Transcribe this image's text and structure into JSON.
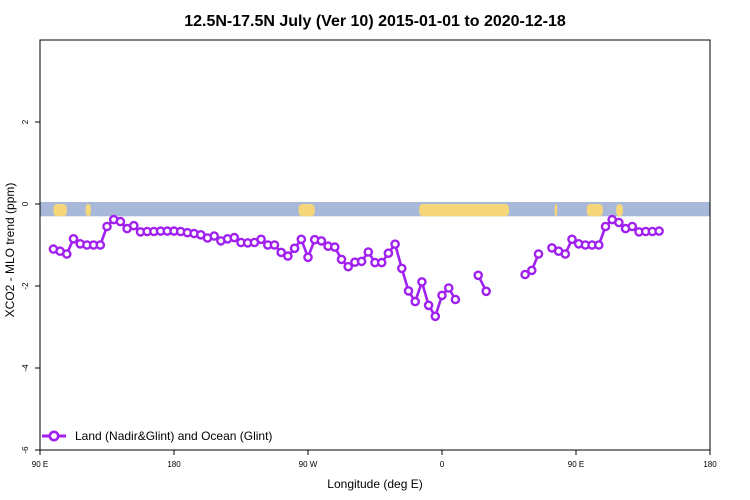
{
  "chart_data": {
    "type": "line",
    "title": "12.5N-17.5N July (Ver 10)   2015-01-01 to 2020-12-18",
    "xlabel": "Longitude (deg E)",
    "ylabel": "XCO2 - MLO trend (ppm)",
    "xlim": [
      0,
      500
    ],
    "ylim": [
      -6,
      4
    ],
    "x_ticks": [
      {
        "value": 0,
        "label": "90 E"
      },
      {
        "value": 100,
        "label": "180"
      },
      {
        "value": 200,
        "label": "90 W"
      },
      {
        "value": 300,
        "label": "0"
      },
      {
        "value": 400,
        "label": "90 E"
      },
      {
        "value": 500,
        "label": "180"
      }
    ],
    "y_ticks": [
      -6,
      -4,
      -2,
      0,
      2
    ],
    "legend": {
      "position": "bottom-left",
      "label": "Land (Nadir&Glint) and Ocean (Glint)"
    },
    "series": [
      {
        "name": "Land (Nadir&Glint) and Ocean (Glint)",
        "color": "#a020f0",
        "segments": [
          [
            [
              10,
              -1.1
            ],
            [
              15,
              -1.15
            ],
            [
              20,
              -1.22
            ],
            [
              25,
              -0.85
            ],
            [
              30,
              -0.97
            ],
            [
              35,
              -1.0
            ],
            [
              40,
              -1.0
            ],
            [
              45,
              -1.0
            ],
            [
              50,
              -0.55
            ],
            [
              55,
              -0.38
            ],
            [
              60,
              -0.43
            ],
            [
              65,
              -0.6
            ],
            [
              70,
              -0.53
            ],
            [
              75,
              -0.68
            ],
            [
              80,
              -0.67
            ],
            [
              85,
              -0.67
            ],
            [
              90,
              -0.66
            ],
            [
              95,
              -0.66
            ],
            [
              100,
              -0.66
            ],
            [
              105,
              -0.67
            ],
            [
              110,
              -0.7
            ],
            [
              115,
              -0.72
            ],
            [
              120,
              -0.75
            ],
            [
              125,
              -0.83
            ],
            [
              130,
              -0.78
            ],
            [
              135,
              -0.9
            ],
            [
              140,
              -0.85
            ],
            [
              145,
              -0.82
            ],
            [
              150,
              -0.94
            ],
            [
              155,
              -0.95
            ],
            [
              160,
              -0.94
            ],
            [
              165,
              -0.86
            ],
            [
              170,
              -1.0
            ],
            [
              175,
              -1.0
            ],
            [
              180,
              -1.18
            ],
            [
              185,
              -1.27
            ],
            [
              190,
              -1.08
            ],
            [
              195,
              -0.86
            ],
            [
              200,
              -1.3
            ],
            [
              205,
              -0.87
            ],
            [
              210,
              -0.9
            ],
            [
              215,
              -1.03
            ],
            [
              220,
              -1.05
            ],
            [
              225,
              -1.35
            ],
            [
              230,
              -1.53
            ],
            [
              235,
              -1.42
            ],
            [
              240,
              -1.4
            ],
            [
              245,
              -1.17
            ],
            [
              250,
              -1.43
            ],
            [
              255,
              -1.43
            ],
            [
              260,
              -1.2
            ],
            [
              265,
              -0.98
            ],
            [
              270,
              -1.57
            ],
            [
              275,
              -2.12
            ],
            [
              280,
              -2.38
            ],
            [
              285,
              -1.9
            ],
            [
              290,
              -2.47
            ],
            [
              295,
              -2.74
            ],
            [
              300,
              -2.23
            ],
            [
              305,
              -2.05
            ],
            [
              310,
              -2.33
            ]
          ],
          [
            [
              327,
              -1.74
            ],
            [
              333,
              -2.13
            ]
          ],
          [
            [
              362,
              -1.72
            ],
            [
              367,
              -1.62
            ],
            [
              372,
              -1.22
            ]
          ],
          [
            [
              382,
              -1.07
            ],
            [
              387,
              -1.15
            ],
            [
              392,
              -1.22
            ],
            [
              397,
              -0.86
            ],
            [
              402,
              -0.97
            ],
            [
              407,
              -1.0
            ],
            [
              412,
              -1.0
            ],
            [
              417,
              -1.0
            ],
            [
              422,
              -0.55
            ],
            [
              427,
              -0.38
            ],
            [
              432,
              -0.45
            ],
            [
              437,
              -0.6
            ],
            [
              442,
              -0.55
            ],
            [
              447,
              -0.68
            ],
            [
              452,
              -0.67
            ],
            [
              457,
              -0.67
            ],
            [
              462,
              -0.66
            ]
          ]
        ]
      }
    ],
    "map_strip": {
      "ocean_color": "#a8b8d8",
      "land_color": "#f5d77a",
      "y_range": [
        -0.3,
        0.05
      ],
      "land_segments": [
        [
          10,
          20
        ],
        [
          34,
          38
        ],
        [
          193,
          205
        ],
        [
          283,
          350
        ],
        [
          384,
          386
        ],
        [
          408,
          420
        ],
        [
          430,
          435
        ]
      ]
    }
  }
}
